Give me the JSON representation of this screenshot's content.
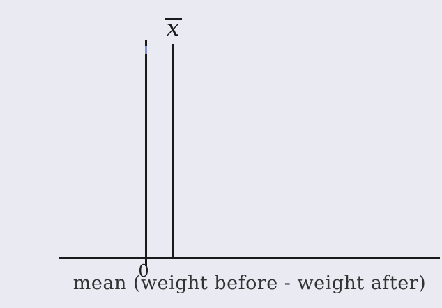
{
  "figure": {
    "xbar_label": "x",
    "zero_tick_label": "0",
    "axis_caption": "mean (weight before - weight after)",
    "colors": {
      "background": "#e9eaf2",
      "axis_and_lines": "#1a1a1a",
      "blue_mark": "#8495d2",
      "caption_text": "#333333"
    }
  },
  "chart_data": {
    "type": "line",
    "title": "",
    "xlabel": "mean (weight before - weight after)",
    "ylabel": "",
    "x_tick_labels": [
      "0"
    ],
    "grid": false,
    "legend": false,
    "annotations": [
      {
        "label": "0",
        "mark": "vertical reference line at x = 0, crossing the axis as a tick, with a small blue segment near its top"
      },
      {
        "label": "x̄",
        "mark": "vertical line slightly to the right of 0 (unlabeled positive value) marking the sample mean, topped by an overlined italic x"
      }
    ]
  }
}
